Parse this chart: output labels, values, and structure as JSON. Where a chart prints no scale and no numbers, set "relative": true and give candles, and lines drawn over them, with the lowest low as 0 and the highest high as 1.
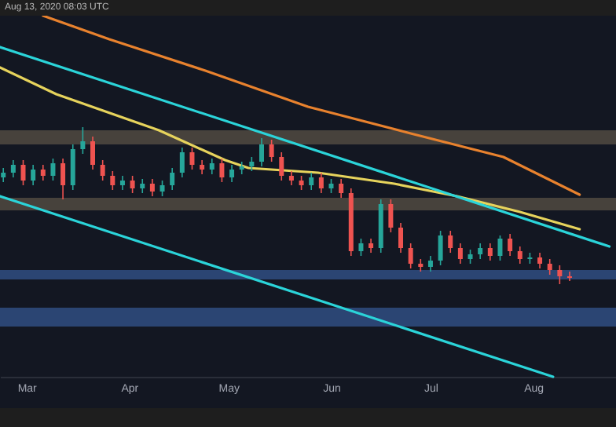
{
  "chart_data": {
    "type": "candlestick",
    "relative": true,
    "annotations": [
      "Aug 13, 2020 08:03 UTC"
    ],
    "x": [
      "2020-02-23",
      "2020-02-26",
      "2020-02-29",
      "2020-03-03",
      "2020-03-06",
      "2020-03-09",
      "2020-03-12",
      "2020-03-15",
      "2020-03-18",
      "2020-03-21",
      "2020-03-24",
      "2020-03-27",
      "2020-03-30",
      "2020-04-02",
      "2020-04-05",
      "2020-04-08",
      "2020-04-11",
      "2020-04-14",
      "2020-04-17",
      "2020-04-20",
      "2020-04-23",
      "2020-04-26",
      "2020-04-29",
      "2020-05-02",
      "2020-05-05",
      "2020-05-08",
      "2020-05-11",
      "2020-05-14",
      "2020-05-17",
      "2020-05-20",
      "2020-05-23",
      "2020-05-26",
      "2020-05-29",
      "2020-06-01",
      "2020-06-04",
      "2020-06-07",
      "2020-06-10",
      "2020-06-13",
      "2020-06-16",
      "2020-06-19",
      "2020-06-22",
      "2020-06-25",
      "2020-06-28",
      "2020-07-01",
      "2020-07-04",
      "2020-07-07",
      "2020-07-10",
      "2020-07-13",
      "2020-07-16",
      "2020-07-19",
      "2020-07-22",
      "2020-07-25",
      "2020-07-28",
      "2020-07-31",
      "2020-08-03",
      "2020-08-06",
      "2020-08-09",
      "2020-08-12"
    ],
    "ohlc": [
      [
        0.68,
        0.74,
        0.65,
        0.71
      ],
      [
        0.71,
        0.79,
        0.68,
        0.76
      ],
      [
        0.76,
        0.79,
        0.63,
        0.66
      ],
      [
        0.66,
        0.76,
        0.63,
        0.73
      ],
      [
        0.73,
        0.76,
        0.66,
        0.69
      ],
      [
        0.69,
        0.8,
        0.66,
        0.77
      ],
      [
        0.77,
        0.8,
        0.54,
        0.63
      ],
      [
        0.63,
        0.89,
        0.6,
        0.86
      ],
      [
        0.86,
        1.0,
        0.83,
        0.91
      ],
      [
        0.91,
        0.94,
        0.73,
        0.76
      ],
      [
        0.76,
        0.79,
        0.66,
        0.69
      ],
      [
        0.69,
        0.72,
        0.6,
        0.63
      ],
      [
        0.63,
        0.69,
        0.6,
        0.66
      ],
      [
        0.66,
        0.69,
        0.58,
        0.61
      ],
      [
        0.61,
        0.67,
        0.58,
        0.64
      ],
      [
        0.64,
        0.67,
        0.56,
        0.59
      ],
      [
        0.59,
        0.66,
        0.56,
        0.63
      ],
      [
        0.63,
        0.74,
        0.6,
        0.71
      ],
      [
        0.71,
        0.87,
        0.68,
        0.84
      ],
      [
        0.84,
        0.87,
        0.73,
        0.76
      ],
      [
        0.76,
        0.79,
        0.7,
        0.73
      ],
      [
        0.73,
        0.8,
        0.7,
        0.77
      ],
      [
        0.77,
        0.8,
        0.65,
        0.68
      ],
      [
        0.68,
        0.76,
        0.65,
        0.73
      ],
      [
        0.73,
        0.78,
        0.7,
        0.75
      ],
      [
        0.75,
        0.81,
        0.72,
        0.78
      ],
      [
        0.78,
        0.93,
        0.75,
        0.89
      ],
      [
        0.89,
        0.92,
        0.78,
        0.81
      ],
      [
        0.81,
        0.84,
        0.66,
        0.69
      ],
      [
        0.69,
        0.72,
        0.63,
        0.66
      ],
      [
        0.66,
        0.69,
        0.6,
        0.63
      ],
      [
        0.63,
        0.71,
        0.6,
        0.68
      ],
      [
        0.68,
        0.71,
        0.58,
        0.61
      ],
      [
        0.61,
        0.67,
        0.58,
        0.64
      ],
      [
        0.64,
        0.67,
        0.55,
        0.58
      ],
      [
        0.58,
        0.61,
        0.18,
        0.21
      ],
      [
        0.21,
        0.29,
        0.18,
        0.26
      ],
      [
        0.26,
        0.29,
        0.2,
        0.23
      ],
      [
        0.23,
        0.54,
        0.2,
        0.51
      ],
      [
        0.51,
        0.54,
        0.33,
        0.36
      ],
      [
        0.36,
        0.39,
        0.2,
        0.23
      ],
      [
        0.23,
        0.26,
        0.1,
        0.13
      ],
      [
        0.13,
        0.16,
        0.08,
        0.11
      ],
      [
        0.11,
        0.18,
        0.08,
        0.15
      ],
      [
        0.15,
        0.34,
        0.12,
        0.31
      ],
      [
        0.31,
        0.34,
        0.2,
        0.23
      ],
      [
        0.23,
        0.26,
        0.13,
        0.16
      ],
      [
        0.16,
        0.22,
        0.13,
        0.19
      ],
      [
        0.19,
        0.26,
        0.16,
        0.23
      ],
      [
        0.23,
        0.26,
        0.15,
        0.18
      ],
      [
        0.18,
        0.31,
        0.15,
        0.29
      ],
      [
        0.29,
        0.32,
        0.18,
        0.21
      ],
      [
        0.21,
        0.24,
        0.13,
        0.16
      ],
      [
        0.16,
        0.2,
        0.13,
        0.17
      ],
      [
        0.17,
        0.2,
        0.1,
        0.13
      ],
      [
        0.13,
        0.16,
        0.06,
        0.09
      ],
      [
        0.09,
        0.12,
        0.0,
        0.05
      ],
      [
        0.05,
        0.08,
        0.02,
        0.04
      ]
    ],
    "colors": [
      "#26a69a",
      "#26a69a",
      "#ef5350",
      "#26a69a",
      "#ef5350",
      "#26a69a",
      "#ef5350",
      "#26a69a",
      "#26a69a",
      "#ef5350",
      "#ef5350",
      "#ef5350",
      "#26a69a",
      "#ef5350",
      "#26a69a",
      "#ef5350",
      "#26a69a",
      "#26a69a",
      "#26a69a",
      "#ef5350",
      "#ef5350",
      "#26a69a",
      "#ef5350",
      "#26a69a",
      "#26a69a",
      "#26a69a",
      "#26a69a",
      "#ef5350",
      "#ef5350",
      "#ef5350",
      "#ef5350",
      "#26a69a",
      "#ef5350",
      "#26a69a",
      "#ef5350",
      "#ef5350",
      "#26a69a",
      "#ef5350",
      "#26a69a",
      "#ef5350",
      "#ef5350",
      "#ef5350",
      "#ef5350",
      "#26a69a",
      "#26a69a",
      "#ef5350",
      "#ef5350",
      "#26a69a",
      "#26a69a",
      "#ef5350",
      "#26a69a",
      "#ef5350",
      "#ef5350",
      "#26a69a",
      "#ef5350",
      "#ef5350",
      "#ef5350",
      "#ef5350"
    ],
    "series": [
      {
        "type": "line",
        "color": "#e8822e",
        "x": [
          "2020-03-06",
          "2020-03-26",
          "2020-04-24",
          "2020-05-25",
          "2020-06-25",
          "2020-07-23",
          "2020-08-15"
        ],
        "values": [
          1.71,
          1.56,
          1.36,
          1.13,
          0.96,
          0.81,
          0.57
        ]
      },
      {
        "type": "line",
        "color": "#e6d35c",
        "x": [
          "2020-02-22",
          "2020-03-10",
          "2020-04-10",
          "2020-04-30",
          "2020-05-07",
          "2020-05-28",
          "2020-06-20",
          "2020-07-09",
          "2020-07-28",
          "2020-08-15"
        ],
        "values": [
          1.38,
          1.21,
          0.98,
          0.79,
          0.74,
          0.71,
          0.64,
          0.56,
          0.46,
          0.35
        ]
      },
      {
        "type": "line",
        "color": "#2bd4d9",
        "x": [
          "2020-02-22",
          "2020-08-24"
        ],
        "values": [
          1.51,
          0.24
        ]
      },
      {
        "type": "line",
        "color": "#2bd4d9",
        "x": [
          "2020-02-22",
          "2020-08-07"
        ],
        "values": [
          0.56,
          -0.59
        ]
      }
    ],
    "bands": [
      {
        "axis": "y",
        "from": 0.89,
        "to": 0.98,
        "color": "#5a5246"
      },
      {
        "axis": "y",
        "from": 0.47,
        "to": 0.55,
        "color": "#5a5246"
      },
      {
        "axis": "y",
        "from": 0.03,
        "to": 0.09,
        "color": "#34558f"
      },
      {
        "axis": "y",
        "from": -0.27,
        "to": -0.15,
        "color": "#34558f"
      }
    ],
    "xlim": [
      "2020-02-22",
      "2020-08-26"
    ],
    "xticks": [
      {
        "value": "2020-03-01",
        "label": "Mar"
      },
      {
        "value": "2020-04-01",
        "label": "Apr"
      },
      {
        "value": "2020-05-01",
        "label": "May"
      },
      {
        "value": "2020-06-01",
        "label": "Jun"
      },
      {
        "value": "2020-07-01",
        "label": "Jul"
      },
      {
        "value": "2020-08-01",
        "label": "Aug"
      }
    ]
  }
}
